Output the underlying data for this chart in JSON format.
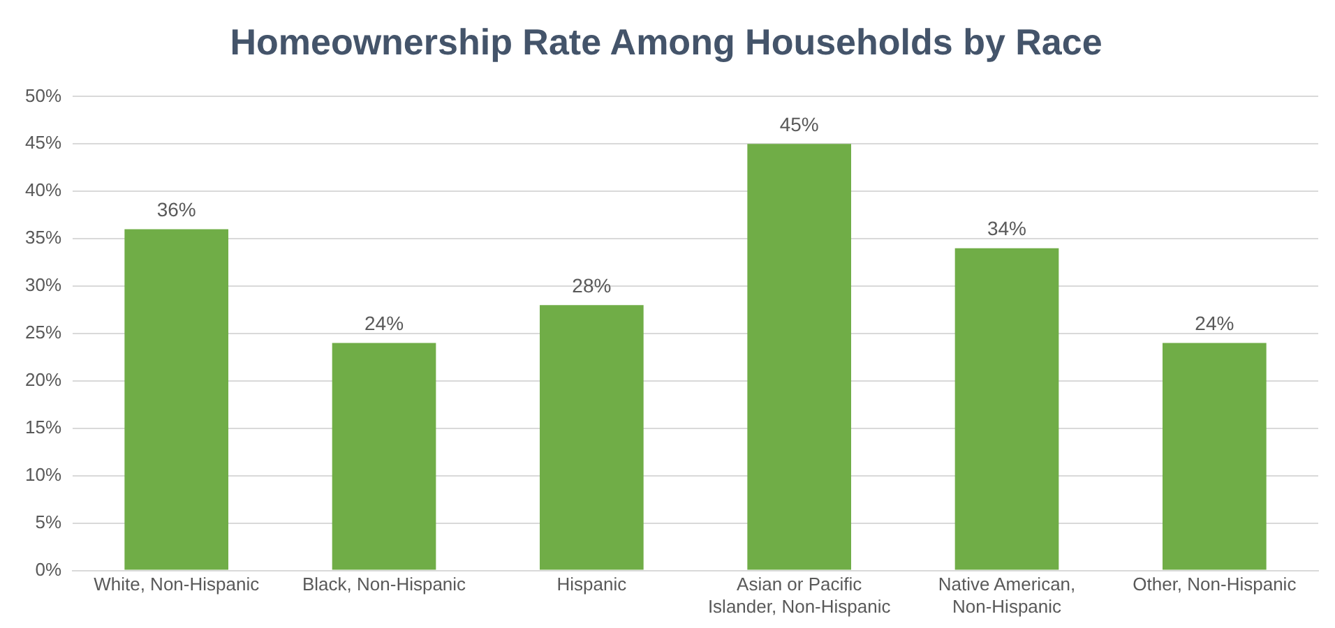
{
  "chart_data": {
    "type": "bar",
    "title": "Homeownership Rate Among Households by Race",
    "categories": [
      "White, Non-Hispanic",
      "Black, Non-Hispanic",
      "Hispanic",
      "Asian or Pacific Islander, Non-Hispanic",
      "Native American, Non-Hispanic",
      "Other, Non-Hispanic"
    ],
    "values": [
      36,
      24,
      28,
      45,
      34,
      24
    ],
    "value_labels": [
      "36%",
      "24%",
      "28%",
      "45%",
      "34%",
      "24%"
    ],
    "color": "#70ad47",
    "ylim": [
      0,
      50
    ],
    "yticks": [
      {
        "value": 0,
        "label": "0%"
      },
      {
        "value": 5,
        "label": "5%"
      },
      {
        "value": 10,
        "label": "10%"
      },
      {
        "value": 15,
        "label": "15%"
      },
      {
        "value": 20,
        "label": "20%"
      },
      {
        "value": 25,
        "label": "25%"
      },
      {
        "value": 30,
        "label": "30%"
      },
      {
        "value": 35,
        "label": "35%"
      },
      {
        "value": 40,
        "label": "40%"
      },
      {
        "value": 45,
        "label": "45%"
      },
      {
        "value": 50,
        "label": "50%"
      }
    ],
    "grid": "y",
    "legend": false
  }
}
